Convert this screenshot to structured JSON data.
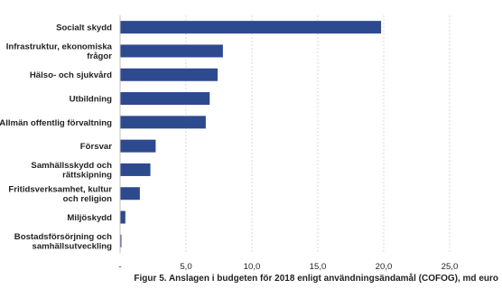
{
  "chart_data": {
    "type": "bar",
    "orientation": "horizontal",
    "categories": [
      "Socialt skydd",
      "Infrastruktur, ekonomiska frågor",
      "Hälso- och sjukvård",
      "Utbildning",
      "Allmän offentlig förvaltning",
      "Försvar",
      "Samhällsskydd och rättskipning",
      "Fritidsverksamhet, kultur och religion",
      "Miljöskydd",
      "Bostadsförsörjning och samhällsutveckling"
    ],
    "category_lines": [
      [
        "Socialt skydd"
      ],
      [
        "Infrastruktur, ekonomiska",
        "frågor"
      ],
      [
        "Hälso- och sjukvård"
      ],
      [
        "Utbildning"
      ],
      [
        "Allmän offentlig förvaltning"
      ],
      [
        "Försvar"
      ],
      [
        "Samhällsskydd och",
        "rättskipning"
      ],
      [
        "Fritidsverksamhet, kultur",
        "och religion"
      ],
      [
        "Miljöskydd"
      ],
      [
        "Bostadsförsörjning och",
        "samhällsutveckling"
      ]
    ],
    "values": [
      19.8,
      7.8,
      7.4,
      6.8,
      6.5,
      2.7,
      2.3,
      1.5,
      0.4,
      0.1
    ],
    "xlim": [
      0,
      25
    ],
    "xticks": [
      0,
      5,
      10,
      15,
      20,
      25
    ],
    "xtick_labels": [
      "-",
      "5,0",
      "10,0",
      "15,0",
      "20,0",
      "25,0"
    ],
    "bar_color": "#2e4a8e",
    "grid": "vertical dashed",
    "title": "Figur 5. Anslagen i budgeten för 2018 enligt användningsändamål (COFOG), md euro",
    "xlabel": "",
    "ylabel": ""
  }
}
